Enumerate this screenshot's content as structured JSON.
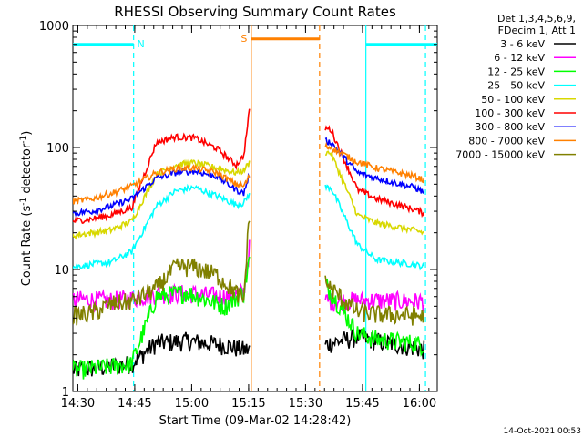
{
  "chart_data": {
    "type": "line",
    "title": "RHESSI Observing Summary Count Rates",
    "xlabel": "Start Time (09-Mar-02 14:28:42)",
    "ylabel_prefix": "Count Rate (s",
    "ylabel_sup1": "-1",
    "ylabel_mid": " detector",
    "ylabel_sup2": "-1",
    "ylabel_suffix": ")",
    "yscale": "log",
    "ylim": [
      1,
      1000
    ],
    "xlim_min": [
      0,
      96
    ],
    "x_ticks": [
      {
        "label": "14:30",
        "t": 1.3
      },
      {
        "label": "14:45",
        "t": 16.3
      },
      {
        "label": "15:00",
        "t": 31.3
      },
      {
        "label": "15:15",
        "t": 46.3
      },
      {
        "label": "15:30",
        "t": 61.3
      },
      {
        "label": "15:45",
        "t": 76.3
      },
      {
        "label": "16:00",
        "t": 91.3
      }
    ],
    "y_ticks": [
      {
        "label": "1",
        "v": 1
      },
      {
        "label": "10",
        "v": 10
      },
      {
        "label": "100",
        "v": 100
      },
      {
        "label": "1000",
        "v": 1000
      }
    ],
    "legend_header": [
      "Det 1,3,4,5,6,9,",
      "FDecim 1, Att 1"
    ],
    "legend_position": "right",
    "flags": {
      "night_label": "N",
      "saa_label": "S",
      "night_color": "#00ffff",
      "saa_color": "#ff8000",
      "night_intervals": [
        [
          0,
          16.0
        ],
        [
          77.2,
          96
        ]
      ],
      "saa_interval": [
        47.0,
        65.0
      ],
      "level": 700
    },
    "vertical_markers": [
      {
        "t": 16.0,
        "color": "#00ffff",
        "style": "dashed"
      },
      {
        "t": 47.0,
        "color": "#ff8000",
        "style": "solid"
      },
      {
        "t": 65.0,
        "color": "#ff8000",
        "style": "dashed"
      },
      {
        "t": 77.2,
        "color": "#00ffff",
        "style": "solid"
      },
      {
        "t": 92.9,
        "color": "#00ffff",
        "style": "dashed"
      }
    ],
    "series": [
      {
        "name": "3 - 6 keV",
        "color": "#000000",
        "x": [
          0,
          10,
          15.5,
          22,
          30,
          40,
          45,
          46.5,
          63,
          68,
          75,
          80,
          90,
          92.5
        ],
        "y": [
          1.5,
          1.6,
          1.7,
          2.5,
          2.6,
          2.4,
          2.2,
          2.2,
          2.2,
          2.5,
          2.8,
          2.6,
          2.3,
          2.2
        ]
      },
      {
        "name": "6 - 12 keV",
        "color": "#ff00ff",
        "x": [
          0,
          10,
          15.5,
          22,
          30,
          40,
          45,
          46.5,
          63,
          68,
          75,
          80,
          90,
          92.5
        ],
        "y": [
          5.7,
          5.6,
          5.8,
          6.3,
          6.4,
          6.0,
          6.5,
          15,
          5.7,
          5.5,
          5.6,
          5.6,
          5.5,
          5.5
        ]
      },
      {
        "name": "12 - 25 keV",
        "color": "#00ff00",
        "x": [
          0,
          10,
          15.5,
          22,
          30,
          40,
          45,
          46.5,
          63,
          68,
          75,
          80,
          90,
          92.5
        ],
        "y": [
          1.5,
          1.6,
          1.7,
          6.0,
          6.5,
          5.0,
          6.5,
          12,
          11,
          6.5,
          3.0,
          2.7,
          2.5,
          2.4
        ]
      },
      {
        "name": "25 - 50 keV",
        "color": "#00ffff",
        "x": [
          0,
          5,
          10,
          15.5,
          22,
          27,
          32,
          38,
          43,
          45,
          46.5,
          63,
          68,
          75,
          80,
          90,
          92.5
        ],
        "y": [
          10.5,
          11,
          11.5,
          14,
          33,
          44,
          47,
          40,
          34,
          35,
          42,
          48,
          47,
          16,
          12,
          11,
          10.5
        ]
      },
      {
        "name": "50 - 100 keV",
        "color": "#d8d800",
        "x": [
          0,
          5,
          10,
          15.5,
          22,
          27,
          32,
          38,
          43,
          45,
          46.5,
          63,
          68,
          75,
          80,
          90,
          92.5
        ],
        "y": [
          19,
          20,
          21,
          25,
          60,
          72,
          75,
          68,
          62,
          65,
          75,
          95,
          90,
          28,
          24,
          21,
          20
        ]
      },
      {
        "name": "100 - 300 keV",
        "color": "#ff0000",
        "x": [
          0,
          5,
          10,
          15.5,
          22,
          27,
          32,
          38,
          43,
          45,
          46.5,
          63,
          68,
          75,
          80,
          90,
          92.5
        ],
        "y": [
          25,
          26,
          28,
          32,
          110,
          122,
          120,
          98,
          72,
          85,
          200,
          155,
          140,
          45,
          38,
          31,
          29
        ]
      },
      {
        "name": "300 - 800 keV",
        "color": "#0000ff",
        "x": [
          0,
          5,
          10,
          15.5,
          22,
          27,
          32,
          38,
          43,
          45,
          46.5,
          63,
          68,
          75,
          80,
          90,
          92.5
        ],
        "y": [
          29,
          30,
          33,
          38,
          56,
          62,
          64,
          58,
          45,
          42,
          60,
          120,
          110,
          62,
          56,
          47,
          43
        ]
      },
      {
        "name": "800 - 7000 keV",
        "color": "#ff8000",
        "x": [
          0,
          5,
          10,
          15.5,
          22,
          27,
          32,
          38,
          43,
          45,
          46.5,
          63,
          68,
          75,
          80,
          90,
          92.5
        ],
        "y": [
          36,
          38,
          42,
          48,
          62,
          67,
          68,
          62,
          50,
          48,
          58,
          105,
          100,
          76,
          68,
          58,
          54
        ]
      },
      {
        "name": "7000 - 15000 keV",
        "color": "#808000",
        "x": [
          0,
          5,
          10,
          15.5,
          22,
          27,
          32,
          38,
          43,
          45,
          46.5,
          63,
          68,
          75,
          80,
          90,
          92.5
        ],
        "y": [
          4.2,
          4.4,
          5.2,
          5.5,
          7.0,
          10.5,
          10.5,
          9.0,
          6.5,
          5.5,
          30,
          11,
          7.0,
          4.5,
          4.3,
          4.2,
          4.1
        ]
      }
    ]
  },
  "footer": {
    "timestamp": "14-Oct-2021 00:53"
  }
}
